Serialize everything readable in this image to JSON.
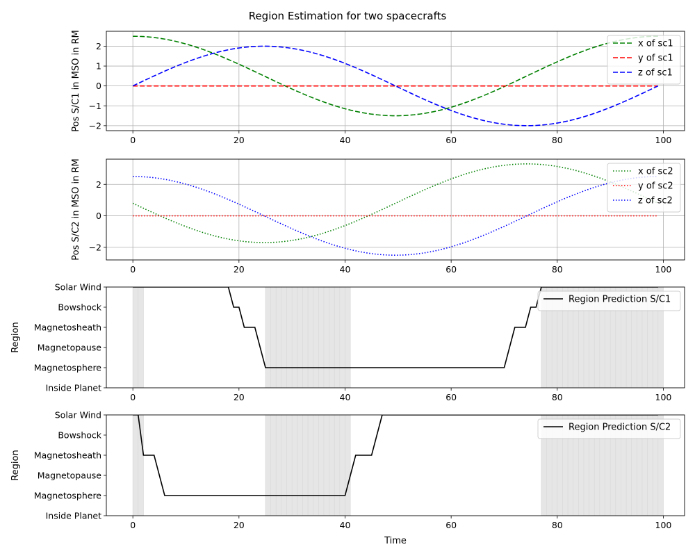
{
  "figure": {
    "title": "Region Estimation for two spacecrafts",
    "xlabel": "Time"
  },
  "chart_data": [
    {
      "type": "line",
      "ylabel": "Pos S/C1 in MSO in RM",
      "xlim": [
        -5,
        104
      ],
      "ylim": [
        -2.25,
        2.75
      ],
      "xticks": [
        0,
        20,
        40,
        60,
        80,
        100
      ],
      "yticks": [
        -2,
        -1,
        0,
        1,
        2
      ],
      "grid": true,
      "legend": "upper right",
      "x": {
        "start": 0,
        "end": 99,
        "step": 1
      },
      "series": [
        {
          "name": "x of sc1",
          "color": "#008000",
          "style": "dashed",
          "formula": "0.5 + 2*cos(2*pi*t/99)"
        },
        {
          "name": "y of sc1",
          "color": "#ff0000",
          "style": "dashed",
          "formula": "0"
        },
        {
          "name": "z of sc1",
          "color": "#0000ff",
          "style": "dashed",
          "formula": "2*sin(2*pi*t/99)"
        }
      ]
    },
    {
      "type": "line",
      "ylabel": "Pos S/C2 in MSO in RM",
      "xlim": [
        -5,
        104
      ],
      "ylim": [
        -2.8,
        3.6
      ],
      "xticks": [
        0,
        20,
        40,
        60,
        80,
        100
      ],
      "yticks": [
        -2,
        0,
        2
      ],
      "grid": true,
      "legend": "upper right",
      "x": {
        "start": 0,
        "end": 99,
        "step": 1
      },
      "series": [
        {
          "name": "x of sc2",
          "color": "#008000",
          "style": "dotted",
          "formula": "0.8 - 2.5*sin(2*pi*t/99)"
        },
        {
          "name": "y of sc2",
          "color": "#ff0000",
          "style": "dotted",
          "formula": "0"
        },
        {
          "name": "z of sc2",
          "color": "#0000ff",
          "style": "dotted",
          "formula": "2.5*cos(2*pi*t/99)"
        }
      ]
    },
    {
      "type": "line",
      "ylabel": "Region",
      "xlim": [
        -5,
        104
      ],
      "ylim": [
        0,
        5
      ],
      "xticks": [
        0,
        20,
        40,
        60,
        80,
        100
      ],
      "yticklabels": [
        "Inside Planet",
        "Magnetosphere",
        "Magnetopause",
        "Magnetosheath",
        "Bowshock",
        "Solar Wind"
      ],
      "grid": false,
      "legend": "upper right",
      "shaded_intervals": [
        [
          0,
          2
        ],
        [
          25,
          41
        ],
        [
          77,
          100
        ]
      ],
      "series": [
        {
          "name": "Region Prediction S/C1",
          "color": "#000000",
          "style": "solid",
          "points": [
            [
              0,
              5
            ],
            [
              18,
              5
            ],
            [
              19,
              4
            ],
            [
              20,
              4
            ],
            [
              21,
              3
            ],
            [
              23,
              3
            ],
            [
              25,
              1
            ],
            [
              70,
              1
            ],
            [
              72,
              3
            ],
            [
              74,
              3
            ],
            [
              75,
              4
            ],
            [
              76,
              4
            ],
            [
              77,
              5
            ],
            [
              99,
              5
            ]
          ]
        }
      ]
    },
    {
      "type": "line",
      "ylabel": "Region",
      "xlabel": "Time",
      "xlim": [
        -5,
        104
      ],
      "ylim": [
        0,
        5
      ],
      "xticks": [
        0,
        20,
        40,
        60,
        80,
        100
      ],
      "yticklabels": [
        "Inside Planet",
        "Magnetosphere",
        "Magnetopause",
        "Magnetosheath",
        "Bowshock",
        "Solar Wind"
      ],
      "grid": false,
      "legend": "upper right",
      "shaded_intervals": [
        [
          0,
          2
        ],
        [
          25,
          41
        ],
        [
          77,
          100
        ]
      ],
      "series": [
        {
          "name": "Region Prediction S/C2",
          "color": "#000000",
          "style": "solid",
          "points": [
            [
              0,
              5
            ],
            [
              1,
              5
            ],
            [
              2,
              3
            ],
            [
              4,
              3
            ],
            [
              6,
              1
            ],
            [
              40,
              1
            ],
            [
              42,
              3
            ],
            [
              45,
              3
            ],
            [
              47,
              5
            ],
            [
              99,
              5
            ]
          ]
        }
      ]
    }
  ]
}
